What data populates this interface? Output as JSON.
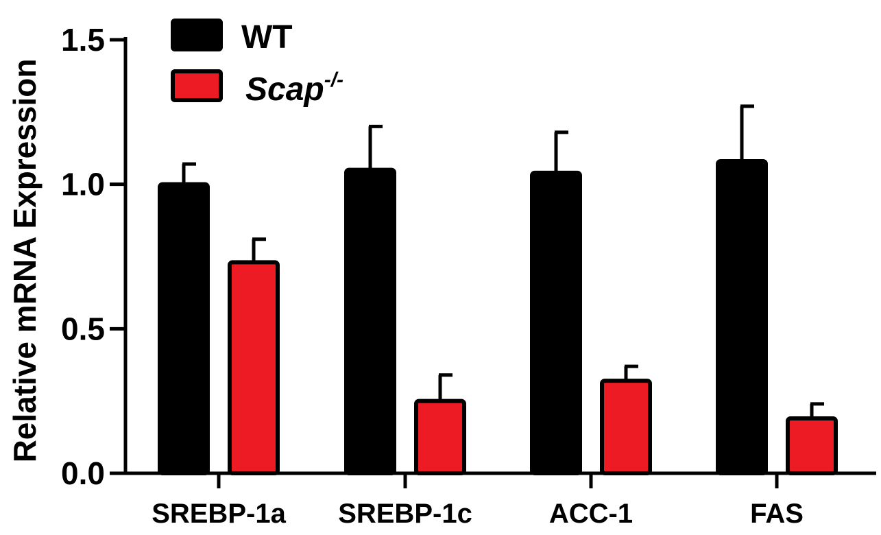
{
  "chart_data": {
    "type": "bar",
    "title": "",
    "xlabel": "",
    "ylabel": "Relative mRNA Expression",
    "ylim": [
      0,
      1.5
    ],
    "yticks": [
      "0.0",
      "0.5",
      "1.0",
      "1.5"
    ],
    "categories": [
      "SREBP-1a",
      "SREBP-1c",
      "ACC-1",
      "FAS"
    ],
    "legend_position": "top-left",
    "series": [
      {
        "name": "WT",
        "color": "#000000",
        "values": [
          1.0,
          1.05,
          1.04,
          1.08
        ],
        "errors": [
          0.07,
          0.15,
          0.14,
          0.19
        ]
      },
      {
        "name": "Scap",
        "name_superscript": "-/-",
        "color": "#ed1c24",
        "values": [
          0.73,
          0.25,
          0.32,
          0.19
        ],
        "errors": [
          0.08,
          0.09,
          0.05,
          0.05
        ]
      }
    ]
  }
}
